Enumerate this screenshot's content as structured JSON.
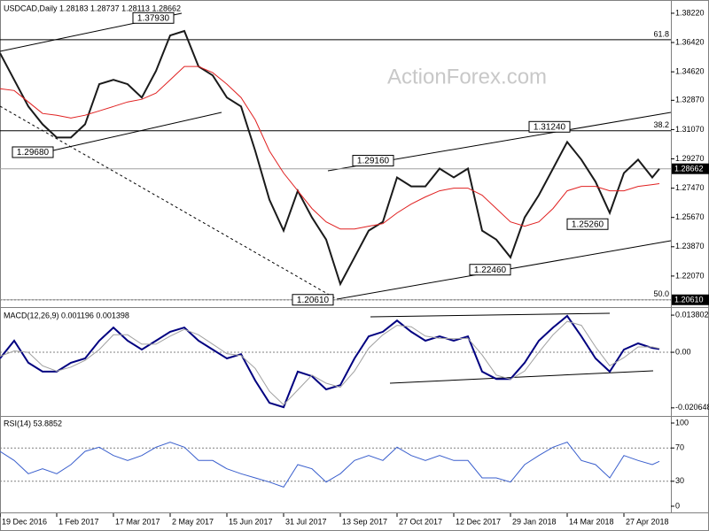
{
  "chart_data": [
    {
      "type": "line",
      "title": "USDCAD,Daily  1.28183 1.28737 1.28113 1.28662",
      "watermark": "ActionForex.com",
      "x": [
        0,
        8,
        16,
        24,
        32,
        40,
        48,
        56,
        64,
        72,
        80,
        88,
        96,
        104,
        112,
        120,
        128,
        136,
        144,
        152,
        160,
        168,
        176,
        184,
        192,
        200,
        208,
        216,
        224,
        232,
        240,
        248,
        256,
        264,
        272,
        280,
        288,
        296,
        304,
        312,
        320,
        328,
        336,
        344,
        352,
        360,
        368,
        372
      ],
      "series": [
        {
          "color": "#1a1a1a",
          "values": [
            1.3577,
            1.3413,
            1.3249,
            1.314,
            1.3058,
            1.3058,
            1.314,
            1.3386,
            1.3413,
            1.3386,
            1.3304,
            1.3467,
            1.3686,
            1.3713,
            1.3495,
            1.344,
            1.3304,
            1.3249,
            1.2976,
            1.2676,
            1.2486,
            1.2731,
            1.2567,
            1.2431,
            1.2158,
            1.2322,
            1.2486,
            1.254,
            1.2813,
            1.2758,
            1.2758,
            1.2867,
            1.2813,
            1.2867,
            1.2486,
            1.2431,
            1.2322,
            1.2567,
            1.2704,
            1.2867,
            1.3031,
            1.2922,
            1.2786,
            1.2595,
            1.284,
            1.2922,
            1.2813,
            1.28662
          ]
        },
        {
          "color": "#e02020",
          "values": [
            1.3358,
            1.3347,
            1.3277,
            1.3206,
            1.3195,
            1.3178,
            1.3195,
            1.3222,
            1.3249,
            1.3277,
            1.3293,
            1.3331,
            1.3413,
            1.3495,
            1.3495,
            1.3457,
            1.3386,
            1.3304,
            1.3167,
            1.2976,
            1.284,
            1.2731,
            1.2622,
            1.254,
            1.2496,
            1.2496,
            1.2513,
            1.2529,
            1.2595,
            1.2649,
            1.2693,
            1.2731,
            1.2747,
            1.2747,
            1.2704,
            1.2622,
            1.254,
            1.2513,
            1.254,
            1.2622,
            1.2731,
            1.2758,
            1.2758,
            1.2731,
            1.2731,
            1.2758,
            1.2769,
            1.2775
          ]
        }
      ],
      "xlim": [
        0,
        378.5
      ],
      "ylim": [
        1.2027,
        1.3887
      ],
      "yticks": [
        {
          "value": 1.3822,
          "label": "1.38220"
        },
        {
          "value": 1.3642,
          "label": "1.36420"
        },
        {
          "value": 1.3462,
          "label": "1.34620"
        },
        {
          "value": 1.3287,
          "label": "1.32870"
        },
        {
          "value": 1.3107,
          "label": "1.31070"
        },
        {
          "value": 1.2927,
          "label": "1.29270"
        },
        {
          "value": 1.2747,
          "label": "1.27470"
        },
        {
          "value": 1.2567,
          "label": "1.25670"
        },
        {
          "value": 1.2387,
          "label": "1.23870"
        },
        {
          "value": 1.2207,
          "label": "1.22070"
        }
      ],
      "levels": [
        {
          "value": 1.3659,
          "label": "61.8"
        },
        {
          "value": 1.31,
          "label": "38.2"
        },
        {
          "value": 1.2061,
          "label": "50.0"
        }
      ],
      "annotations": [
        {
          "value": 1.3793,
          "label": "1.37930"
        },
        {
          "value": 1.2968,
          "label": "1.29680"
        },
        {
          "value": 1.2916,
          "label": "1.29160"
        },
        {
          "value": 1.3124,
          "label": "1.31240"
        },
        {
          "value": 1.2526,
          "label": "1.25260"
        },
        {
          "value": 1.2246,
          "label": "1.22460"
        },
        {
          "value": 1.2061,
          "label": "1.20610"
        }
      ],
      "axis_marks": [
        {
          "value": 1.28662,
          "label": "1.28662"
        },
        {
          "value": 1.2061,
          "label": "1.20610"
        }
      ]
    },
    {
      "type": "line",
      "title": "MACD(12,26,9) 0.001196 0.001398",
      "x": [
        0,
        8,
        16,
        24,
        32,
        40,
        48,
        56,
        64,
        72,
        80,
        88,
        96,
        104,
        112,
        120,
        128,
        136,
        144,
        152,
        160,
        168,
        176,
        184,
        192,
        200,
        208,
        216,
        224,
        232,
        240,
        248,
        256,
        264,
        272,
        280,
        288,
        296,
        304,
        312,
        320,
        328,
        336,
        344,
        352,
        360,
        368,
        372
      ],
      "series": [
        {
          "color": "#000080",
          "values": [
            -0.0023,
            0.0043,
            -0.0039,
            -0.0072,
            -0.0072,
            -0.0039,
            -0.0023,
            0.0043,
            0.0092,
            0.0043,
            0.001,
            0.0043,
            0.0076,
            0.0092,
            0.0043,
            0.001,
            -0.0023,
            -0.0007,
            -0.0105,
            -0.0188,
            -0.0204,
            -0.0072,
            -0.0089,
            -0.0138,
            -0.0122,
            -0.0023,
            0.0059,
            0.0076,
            0.0118,
            0.0076,
            0.0043,
            0.0059,
            0.0043,
            0.0059,
            -0.0072,
            -0.0099,
            -0.0099,
            -0.0039,
            0.0043,
            0.0092,
            0.0135,
            0.0059,
            -0.0023,
            -0.0072,
            0.001,
            0.0033,
            0.0016,
            0.001196
          ]
        },
        {
          "color": "#a0a0a0",
          "values": [
            -0.0015,
            0.0005,
            0.0,
            -0.005,
            -0.007,
            -0.0055,
            -0.003,
            0.001,
            0.0065,
            0.0065,
            0.003,
            0.003,
            0.006,
            0.0085,
            0.0065,
            0.003,
            -0.0005,
            -0.0012,
            -0.006,
            -0.0145,
            -0.0195,
            -0.014,
            -0.0085,
            -0.0115,
            -0.013,
            -0.007,
            0.0015,
            0.0065,
            0.01,
            0.0095,
            0.006,
            0.0052,
            0.005,
            0.0052,
            -0.001,
            -0.0085,
            -0.01,
            -0.007,
            0.0,
            0.0065,
            0.0115,
            0.01,
            0.002,
            -0.005,
            -0.002,
            0.002,
            0.002,
            0.001398
          ]
        }
      ],
      "xlim": [
        0,
        378.5
      ],
      "ylim": [
        -0.023,
        0.0158
      ],
      "yticks": [
        0.013802,
        {
          "value": 0,
          "label": "0.00"
        },
        -0.020648
      ],
      "hlines": [
        0
      ]
    },
    {
      "type": "line",
      "title": "RSI(14) 53.8852",
      "x": [
        0,
        8,
        16,
        24,
        32,
        40,
        48,
        56,
        64,
        72,
        80,
        88,
        96,
        104,
        112,
        120,
        128,
        136,
        144,
        152,
        160,
        168,
        176,
        184,
        192,
        200,
        208,
        216,
        224,
        232,
        240,
        248,
        256,
        264,
        272,
        280,
        288,
        296,
        304,
        312,
        320,
        328,
        336,
        344,
        352,
        360,
        368,
        372
      ],
      "series": [
        {
          "color": "#3a5fcd",
          "values": [
            66,
            55,
            39,
            45,
            39,
            50,
            66,
            71,
            61,
            55,
            61,
            71,
            77,
            71,
            55,
            55,
            45,
            39,
            34,
            29,
            23,
            50,
            45,
            29,
            39,
            55,
            61,
            55,
            71,
            61,
            55,
            61,
            55,
            55,
            34,
            34,
            29,
            50,
            61,
            71,
            77,
            55,
            50,
            34,
            61,
            55,
            50,
            53.8852
          ]
        }
      ],
      "xlim": [
        0,
        378.5
      ],
      "ylim": [
        -6.4,
        106.4
      ],
      "yticks": [
        100,
        70,
        30,
        0
      ],
      "hlines": [
        70,
        30
      ],
      "xticks": [
        {
          "value": 0,
          "label": "19 Dec 2016"
        },
        {
          "value": 32,
          "label": "1 Feb 2017"
        },
        {
          "value": 64,
          "label": "17 Mar 2017"
        },
        {
          "value": 96,
          "label": "2 May 2017"
        },
        {
          "value": 128,
          "label": "15 Jun 2017"
        },
        {
          "value": 160,
          "label": "31 Jul 2017"
        },
        {
          "value": 192,
          "label": "13 Sep 2017"
        },
        {
          "value": 224,
          "label": "27 Oct 2017"
        },
        {
          "value": 256,
          "label": "12 Dec 2017"
        },
        {
          "value": 288,
          "label": "29 Jan 2018"
        },
        {
          "value": 320,
          "label": "14 Mar 2018"
        },
        {
          "value": 352,
          "label": "27 Apr 2018"
        }
      ]
    }
  ]
}
